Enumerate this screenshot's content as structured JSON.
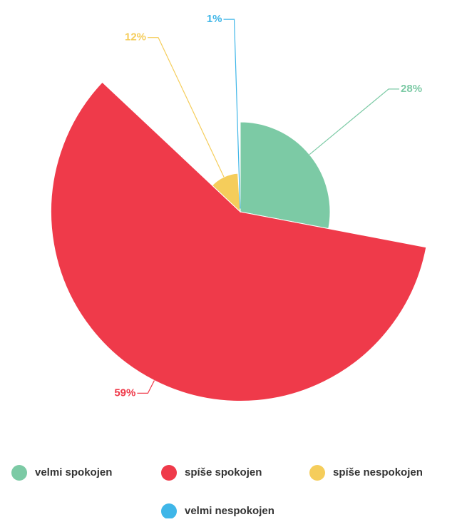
{
  "chart_data": {
    "type": "pie",
    "categories": [
      "velmi spokojen",
      "spíše spokojen",
      "spíše nespokojen",
      "velmi nespokojen"
    ],
    "values": [
      28,
      59,
      12,
      1
    ],
    "value_labels": [
      "28%",
      "59%",
      "12%",
      "1%"
    ],
    "colors": [
      "#7ccaa5",
      "#ef3a4a",
      "#f5cd5b",
      "#3fb6e8"
    ],
    "legend": "bottom"
  }
}
